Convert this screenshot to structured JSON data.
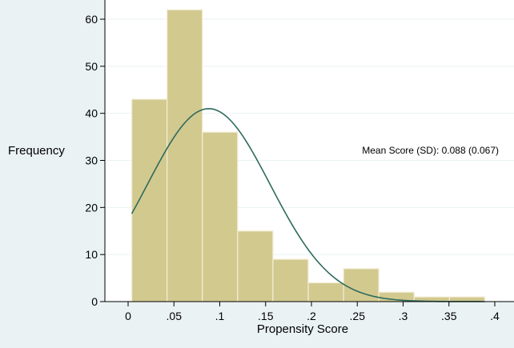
{
  "chart_data": {
    "type": "bar",
    "subtype": "histogram-with-normal-density",
    "xlabel": "Propensity Score",
    "ylabel": "Frequency",
    "annotation": "Mean Score (SD): 0.088 (0.067)",
    "xlim": [
      -0.03,
      0.405
    ],
    "ylim": [
      0,
      63
    ],
    "x_ticks": [
      0,
      0.05,
      0.1,
      0.15,
      0.2,
      0.25,
      0.3,
      0.35,
      0.4
    ],
    "x_tick_labels": [
      "0",
      ".05",
      ".1",
      ".15",
      ".2",
      ".25",
      ".3",
      ".35",
      ".4"
    ],
    "y_ticks": [
      0,
      10,
      20,
      30,
      40,
      50,
      60
    ],
    "y_tick_labels": [
      "0",
      "10",
      "20",
      "30",
      "40",
      "50",
      "60"
    ],
    "grid": "horizontal",
    "bins": [
      {
        "x0": 0.004,
        "x1": 0.0425,
        "value": 43
      },
      {
        "x0": 0.0425,
        "x1": 0.081,
        "value": 62
      },
      {
        "x0": 0.081,
        "x1": 0.1195,
        "value": 36
      },
      {
        "x0": 0.1195,
        "x1": 0.158,
        "value": 15
      },
      {
        "x0": 0.158,
        "x1": 0.1965,
        "value": 9
      },
      {
        "x0": 0.1965,
        "x1": 0.235,
        "value": 4
      },
      {
        "x0": 0.235,
        "x1": 0.2735,
        "value": 7
      },
      {
        "x0": 0.2735,
        "x1": 0.312,
        "value": 2
      },
      {
        "x0": 0.312,
        "x1": 0.3505,
        "value": 1
      },
      {
        "x0": 0.3505,
        "x1": 0.389,
        "value": 1
      }
    ],
    "normal_curve": {
      "mean": 0.088,
      "sd": 0.067,
      "peak": 41,
      "x_range": [
        0.004,
        0.389
      ]
    },
    "colors": {
      "background": "#eaf2f3",
      "plot_background": "#ffffff",
      "bar_fill": "#d2c98f",
      "bar_stroke": "#f3eed7",
      "curve": "#2e6b5e",
      "grid": "#eaf2f3",
      "axis": "#000000"
    }
  }
}
